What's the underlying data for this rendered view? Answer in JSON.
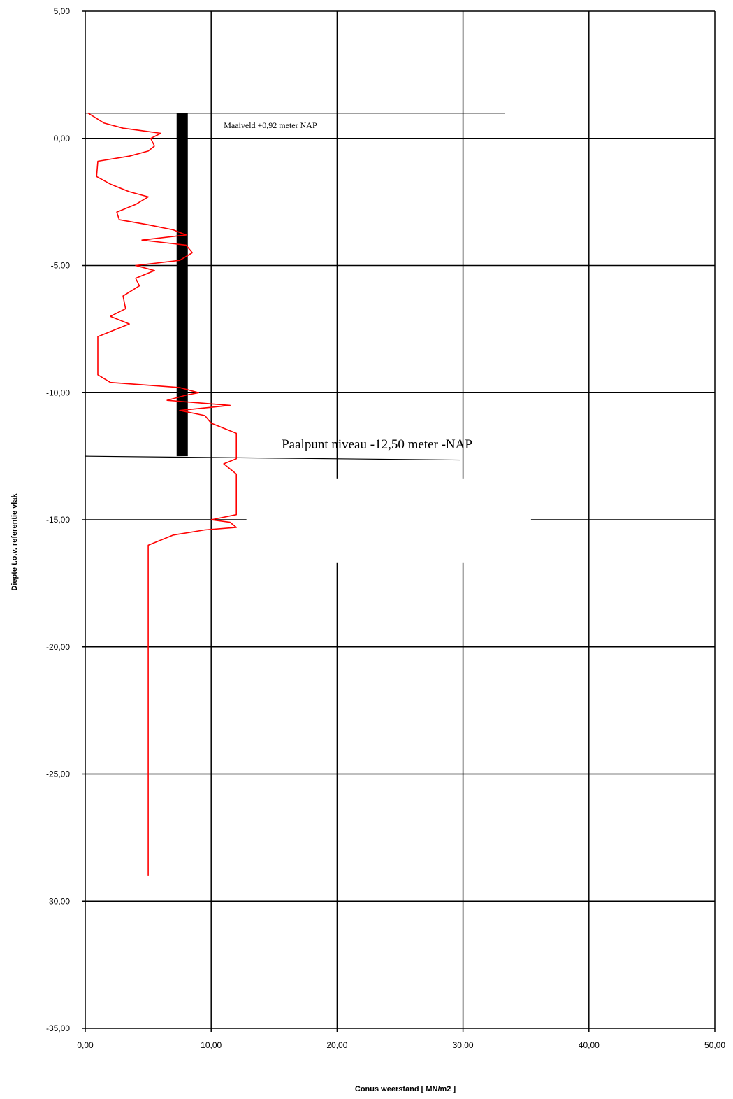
{
  "chart_data": {
    "type": "line",
    "title": "",
    "xlabel": "Conus weerstand [ MN/m2 ]",
    "ylabel": "Diepte t.o.v. referentie vlak",
    "xlim": [
      0,
      50
    ],
    "ylim": [
      -35,
      5
    ],
    "x_ticks": [
      0,
      10,
      20,
      30,
      40,
      50
    ],
    "y_ticks": [
      5,
      0,
      -5,
      -10,
      -15,
      -20,
      -25,
      -30,
      -35
    ],
    "x_tick_labels": [
      "0,00",
      "10,00",
      "20,00",
      "30,00",
      "40,00",
      "50,00"
    ],
    "y_tick_labels": [
      "5,00",
      "0,00",
      "-5,00",
      "-10,00",
      "-15,00",
      "-20,00",
      "-25,00",
      "-30,00",
      "-35,00"
    ],
    "grid": true,
    "series": [
      {
        "color": "#ff0000",
        "points": [
          [
            0.2,
            1.0
          ],
          [
            1.5,
            0.6
          ],
          [
            3.0,
            0.4
          ],
          [
            4.5,
            0.3
          ],
          [
            6.0,
            0.2
          ],
          [
            5.2,
            0.0
          ],
          [
            5.5,
            -0.3
          ],
          [
            5.0,
            -0.5
          ],
          [
            3.5,
            -0.7
          ],
          [
            1.0,
            -0.9
          ],
          [
            0.9,
            -1.5
          ],
          [
            2.0,
            -1.8
          ],
          [
            3.5,
            -2.1
          ],
          [
            5.0,
            -2.3
          ],
          [
            4.0,
            -2.6
          ],
          [
            2.5,
            -2.9
          ],
          [
            2.7,
            -3.2
          ],
          [
            5.0,
            -3.4
          ],
          [
            7.0,
            -3.6
          ],
          [
            8.0,
            -3.8
          ],
          [
            4.5,
            -4.0
          ],
          [
            8.0,
            -4.2
          ],
          [
            8.5,
            -4.5
          ],
          [
            7.5,
            -4.8
          ],
          [
            4.0,
            -5.0
          ],
          [
            5.5,
            -5.2
          ],
          [
            4.0,
            -5.5
          ],
          [
            4.3,
            -5.8
          ],
          [
            3.0,
            -6.2
          ],
          [
            3.2,
            -6.7
          ],
          [
            2.0,
            -7.0
          ],
          [
            3.5,
            -7.3
          ],
          [
            1.0,
            -7.8
          ],
          [
            1.0,
            -9.3
          ],
          [
            2.0,
            -9.6
          ],
          [
            7.5,
            -9.8
          ],
          [
            9.0,
            -10.0
          ],
          [
            8.0,
            -10.1
          ],
          [
            6.5,
            -10.3
          ],
          [
            9.0,
            -10.4
          ],
          [
            11.5,
            -10.5
          ],
          [
            7.5,
            -10.7
          ],
          [
            9.5,
            -10.9
          ],
          [
            10.0,
            -11.2
          ],
          [
            11.0,
            -11.4
          ],
          [
            12.0,
            -11.6
          ],
          [
            12.0,
            -12.6
          ],
          [
            11.0,
            -12.8
          ],
          [
            12.0,
            -13.2
          ],
          [
            12.0,
            -14.8
          ],
          [
            10.0,
            -15.0
          ],
          [
            11.5,
            -15.1
          ],
          [
            12.0,
            -15.3
          ],
          [
            9.5,
            -15.4
          ],
          [
            7.0,
            -15.6
          ],
          [
            5.0,
            -16.0
          ],
          [
            5.0,
            -29.0
          ]
        ]
      }
    ],
    "pile": {
      "x": 7.7,
      "y_top": 1.0,
      "y_bottom": -12.5,
      "color": "#000000"
    },
    "reference_lines": [
      {
        "x_start": 0,
        "x_end": 33.3,
        "y_start": 0.99,
        "y_end": 0.99
      },
      {
        "x_start": 0,
        "x_end": 29.8,
        "y_start": -12.5,
        "y_end": -12.65
      }
    ],
    "annotations": {
      "maaiveld": {
        "text": "Maaiveld  +0,92 meter NAP",
        "x": 11,
        "y": 0.4
      },
      "paalpunt": {
        "text": "Paalpunt niveau  -12,50 meter -NAP",
        "x": 15.6,
        "y": -12.2
      }
    }
  }
}
